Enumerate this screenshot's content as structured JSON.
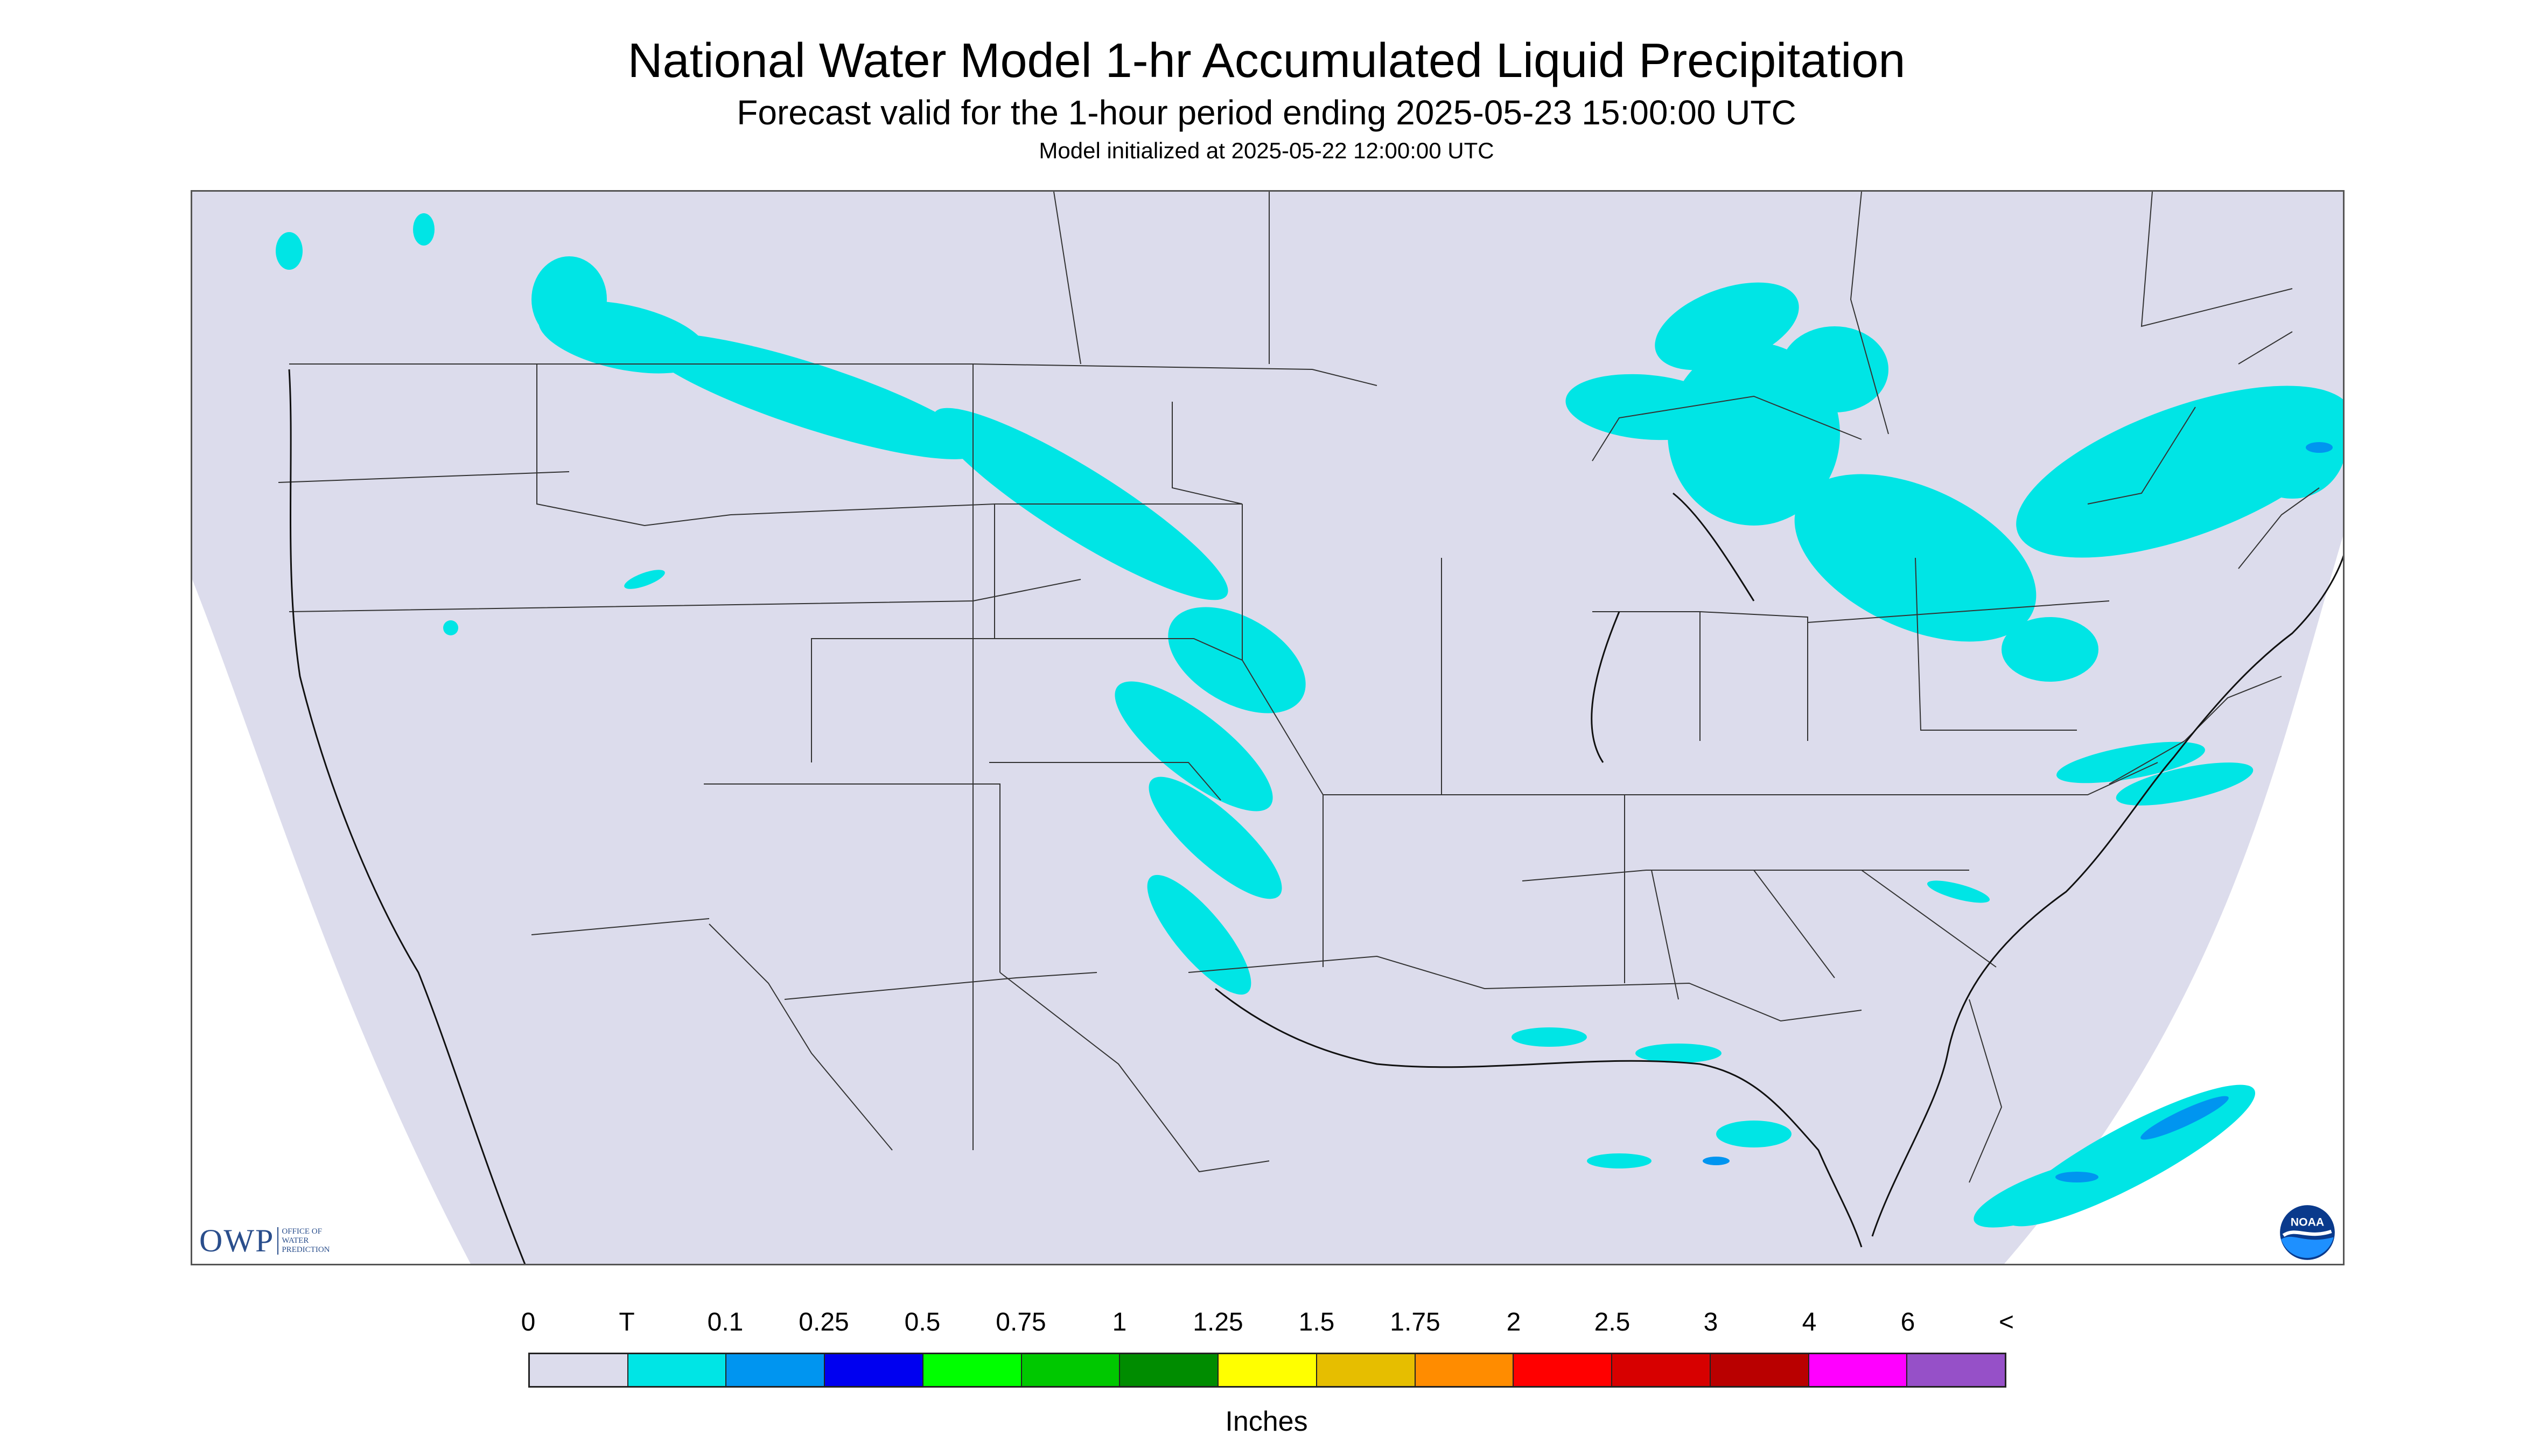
{
  "header": {
    "title": "National Water Model 1-hr Accumulated Liquid Precipitation",
    "subtitle": "Forecast valid for the 1-hour period ending 2025-05-23 15:00:00 UTC",
    "init_line": "Model initialized at 2025-05-22 12:00:00 UTC"
  },
  "map": {
    "background_color": "#dcdcec",
    "precip_color_trace": "#00e5e5",
    "precip_color_01": "#0095f0",
    "boundary_color": "#333333",
    "precip_areas": [
      "Northern Rockies / Montana",
      "Dakotas and Nebraska",
      "Kansas / Oklahoma",
      "Great Lakes",
      "Quebec / Ontario",
      "New England",
      "Mid-Atlantic offshore",
      "Gulf Coast",
      "Florida and offshore Atlantic"
    ]
  },
  "logos": {
    "owp_main": "OWP",
    "owp_sub": [
      "OFFICE OF",
      "WATER",
      "PREDICTION"
    ],
    "noaa": "NOAA"
  },
  "legend": {
    "labels": [
      "0",
      "T",
      "0.1",
      "0.25",
      "0.5",
      "0.75",
      "1",
      "1.25",
      "1.5",
      "1.75",
      "2",
      "2.5",
      "3",
      "4",
      "6",
      "<"
    ],
    "colors": [
      "#dcdcec",
      "#00e5e5",
      "#0095f0",
      "#0000f0",
      "#00ff00",
      "#00c800",
      "#008c00",
      "#ffff00",
      "#e6be00",
      "#ff8c00",
      "#ff0000",
      "#d70000",
      "#b90000",
      "#ff00ff",
      "#9650c8"
    ],
    "units": "Inches"
  }
}
